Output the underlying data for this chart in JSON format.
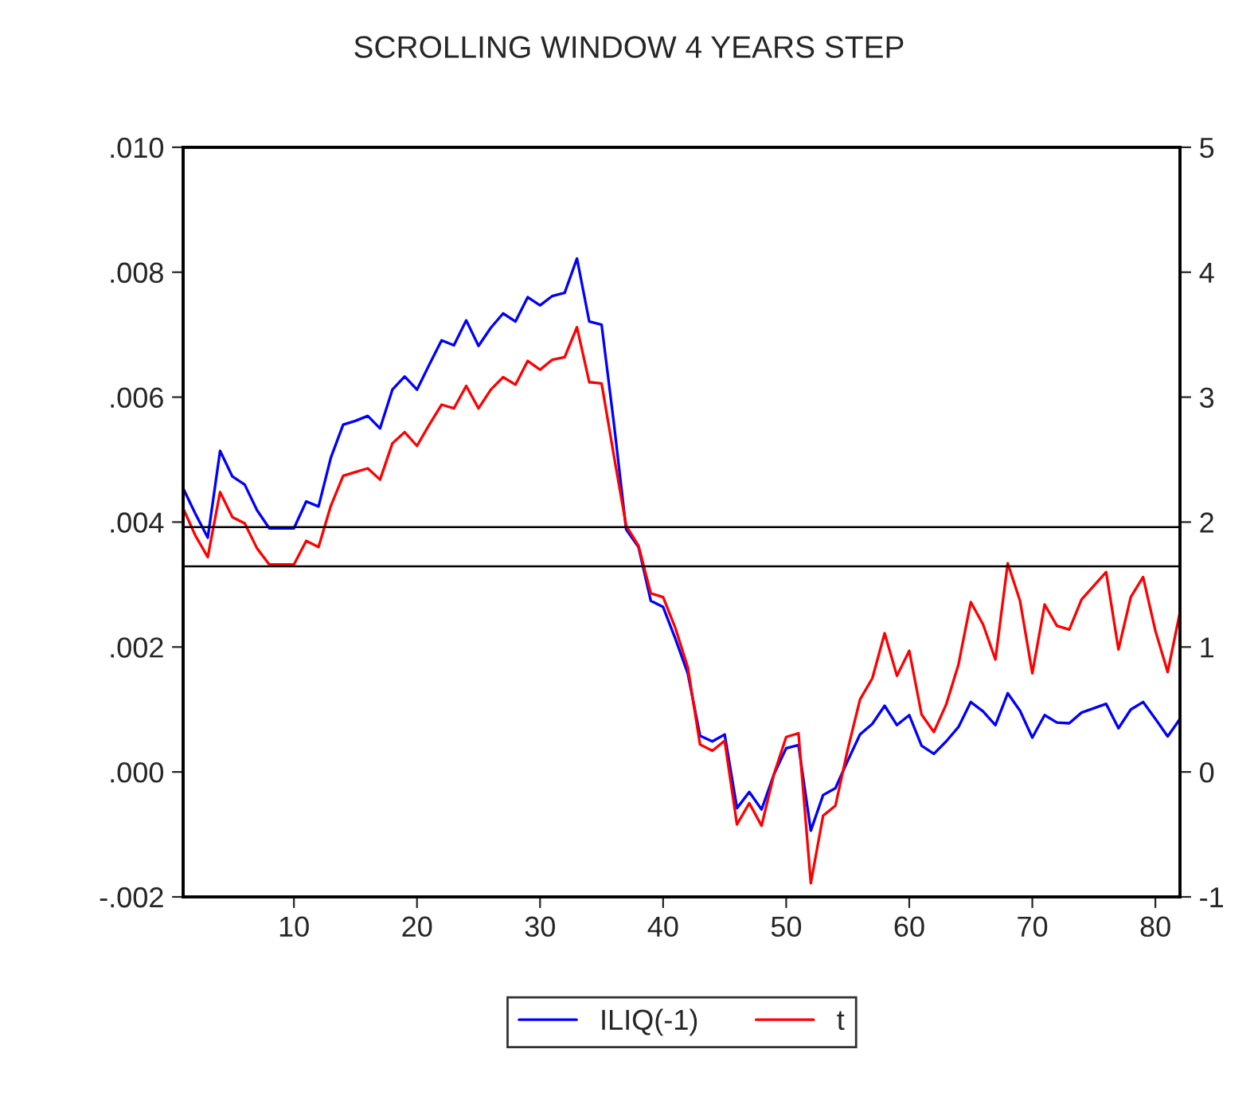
{
  "chart_data": {
    "type": "line",
    "title": "SCROLLING WINDOW 4 YEARS STEP",
    "x": [
      1,
      2,
      3,
      4,
      5,
      6,
      7,
      8,
      9,
      10,
      11,
      12,
      13,
      14,
      15,
      16,
      17,
      18,
      19,
      20,
      21,
      22,
      23,
      24,
      25,
      26,
      27,
      28,
      29,
      30,
      31,
      32,
      33,
      34,
      35,
      36,
      37,
      38,
      39,
      40,
      41,
      42,
      43,
      44,
      45,
      46,
      47,
      48,
      49,
      50,
      51,
      52,
      53,
      54,
      55,
      56,
      57,
      58,
      59,
      60,
      61,
      62,
      63,
      64,
      65,
      66,
      67,
      68,
      69,
      70,
      71,
      72,
      73,
      74,
      75,
      76,
      77,
      78,
      79,
      80,
      81,
      82
    ],
    "series": [
      {
        "name": "ILIQ(-1)",
        "color": "#0000ff",
        "values": [
          0.00454,
          0.00413,
          0.00375,
          0.00514,
          0.00473,
          0.0046,
          0.00419,
          0.0039,
          0.0039,
          0.0039,
          0.00433,
          0.00425,
          0.00503,
          0.00556,
          0.00562,
          0.0057,
          0.0055,
          0.00612,
          0.00633,
          0.00612,
          0.00652,
          0.00691,
          0.00683,
          0.00723,
          0.00682,
          0.00711,
          0.00734,
          0.00721,
          0.0076,
          0.00747,
          0.00762,
          0.00767,
          0.00822,
          0.00721,
          0.00716,
          0.00558,
          0.00388,
          0.0036,
          0.00274,
          0.00264,
          0.00213,
          0.00158,
          0.00058,
          0.00049,
          0.0006,
          -0.00058,
          -0.00032,
          -0.0006,
          -4e-05,
          0.00038,
          0.00043,
          -0.00094,
          -0.00037,
          -0.00026,
          0.00018,
          0.0006,
          0.00077,
          0.00106,
          0.00075,
          0.00091,
          0.00042,
          0.00029,
          0.00049,
          0.00072,
          0.00112,
          0.00097,
          0.00075,
          0.00126,
          0.00098,
          0.00055,
          0.00091,
          0.00079,
          0.00078,
          0.00095,
          0.00102,
          0.00109,
          0.0007,
          0.001,
          0.00112,
          0.00085,
          0.00057,
          0.00085
        ]
      },
      {
        "name": "t",
        "color": "#ff0000",
        "axis": "y2",
        "values": [
          2.11,
          1.89,
          1.72,
          2.24,
          2.04,
          1.99,
          1.79,
          1.66,
          1.66,
          1.66,
          1.85,
          1.8,
          2.13,
          2.37,
          2.4,
          2.43,
          2.34,
          2.63,
          2.72,
          2.61,
          2.78,
          2.94,
          2.91,
          3.09,
          2.91,
          3.06,
          3.16,
          3.1,
          3.29,
          3.22,
          3.3,
          3.32,
          3.56,
          3.12,
          3.11,
          2.53,
          1.97,
          1.81,
          1.43,
          1.4,
          1.15,
          0.84,
          0.22,
          0.17,
          0.25,
          -0.42,
          -0.25,
          -0.43,
          -0.02,
          0.28,
          0.31,
          -0.89,
          -0.35,
          -0.27,
          0.18,
          0.58,
          0.75,
          1.11,
          0.77,
          0.97,
          0.46,
          0.32,
          0.54,
          0.86,
          1.36,
          1.18,
          0.9,
          1.67,
          1.37,
          0.79,
          1.34,
          1.17,
          1.14,
          1.38,
          1.49,
          1.6,
          0.98,
          1.4,
          1.56,
          1.13,
          0.8,
          1.28
        ]
      }
    ],
    "xlim": [
      1,
      82
    ],
    "xticks": [
      10,
      20,
      30,
      40,
      50,
      60,
      70,
      80
    ],
    "ylim": [
      -0.002,
      0.01
    ],
    "yticks": [
      {
        "value": -0.002,
        "label": "-.002"
      },
      {
        "value": 0.0,
        "label": ".000"
      },
      {
        "value": 0.002,
        "label": ".002"
      },
      {
        "value": 0.004,
        "label": ".004"
      },
      {
        "value": 0.006,
        "label": ".006"
      },
      {
        "value": 0.008,
        "label": ".008"
      },
      {
        "value": 0.01,
        "label": ".010"
      }
    ],
    "y2lim": [
      -1,
      5
    ],
    "y2ticks": [
      -1,
      0,
      1,
      2,
      3,
      4,
      5
    ],
    "ref_lines": [
      {
        "axis": "y2",
        "value": 1.96,
        "color": "#000000"
      },
      {
        "axis": "y2",
        "value": 1.645,
        "color": "#000000"
      }
    ],
    "legend": "bottom",
    "grid": false,
    "marker": "none",
    "line_style": "solid"
  }
}
